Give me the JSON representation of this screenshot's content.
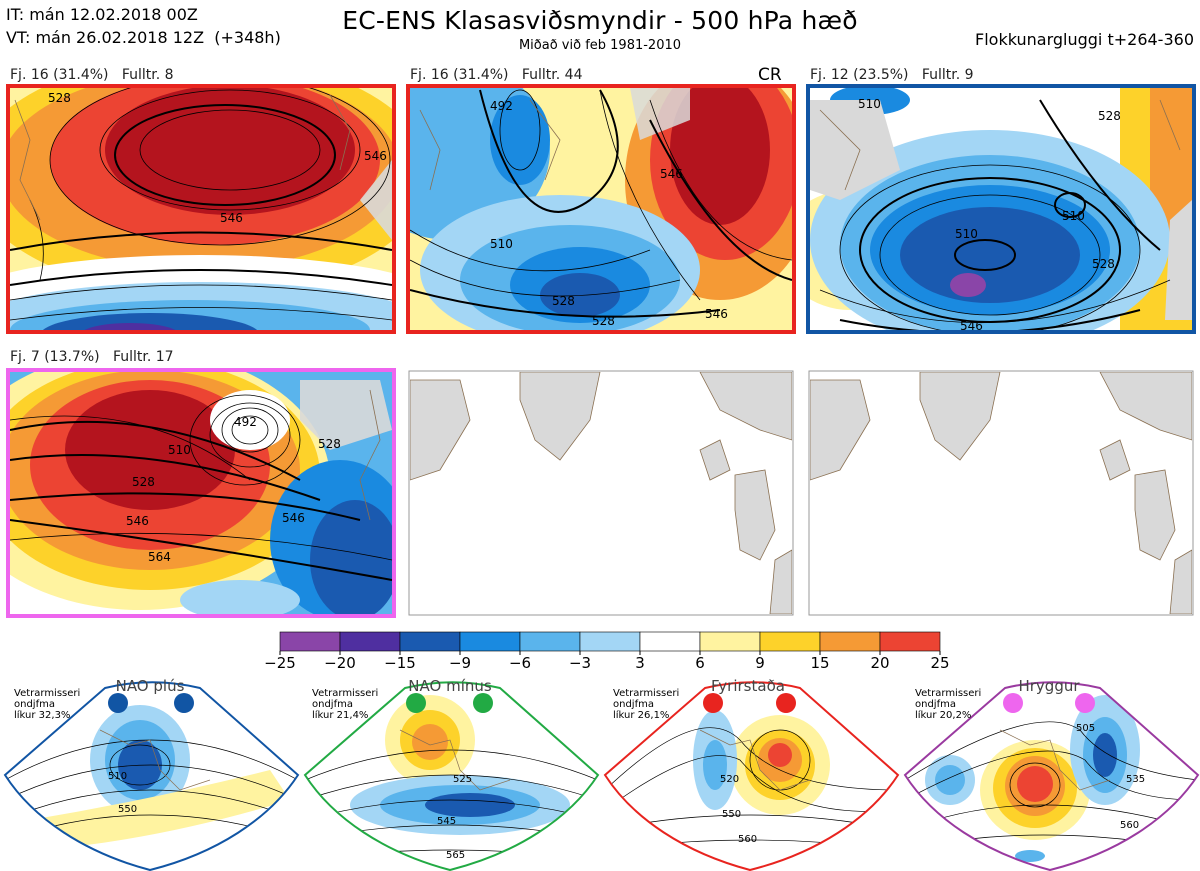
{
  "header": {
    "init_time": "IT: mán 12.02.2018 00Z",
    "valid_time": "VT: mán 26.02.2018 12Z  (+348h)",
    "title": "EC-ENS Klasasviðsmyndir - 500 hPa hæð",
    "subtitle": "Miðað við feb 1981-2010",
    "window": "Flokkunargluggi t+264-360"
  },
  "colors": {
    "cluster_red": "#e8241f",
    "cluster_blue": "#1155a4",
    "cluster_magenta": "#ee66ee",
    "land": "#d9d9d9",
    "coast": "#8a7052",
    "nao_plus": "#1155a4",
    "nao_minus": "#22aa44",
    "blocking": "#e8241f",
    "ridge": "#ee66ee"
  },
  "panels": [
    {
      "label": "Fj. 16 (31.4%)   Fulltr. 8",
      "border": "red",
      "contours": [
        "546",
        "546",
        "528"
      ]
    },
    {
      "label": "Fj. 16 (31.4%)   Fulltr. 44",
      "border": "red",
      "tag": "CR",
      "contours": [
        "492",
        "510",
        "528",
        "546",
        "546",
        "528"
      ]
    },
    {
      "label": "Fj. 12 (23.5%)   Fulltr. 9",
      "border": "blue",
      "contours": [
        "510",
        "510",
        "510",
        "528",
        "546",
        "528"
      ]
    },
    {
      "label": "Fj. 7 (13.7%)   Fulltr. 17",
      "border": "magenta",
      "contours": [
        "492",
        "510",
        "528",
        "546",
        "564",
        "546",
        "528"
      ]
    },
    {
      "label": "",
      "border": "none",
      "contours": []
    },
    {
      "label": "",
      "border": "none",
      "contours": []
    }
  ],
  "regimes": [
    {
      "name": "NAO plús",
      "stats": "Vetrarmisseri\nondjfma\nlíkur 32,3%",
      "contours": [
        "510",
        "550"
      ]
    },
    {
      "name": "NAO mínus",
      "stats": "Vetrarmisseri\nondjfma\nlíkur 21,4%",
      "contours": [
        "525",
        "545",
        "565"
      ]
    },
    {
      "name": "Fyrirstaða",
      "stats": "Vetrarmisseri\nondjfma\nlíkur 26,1%",
      "contours": [
        "520",
        "550",
        "560"
      ]
    },
    {
      "name": "Hryggur",
      "stats": "Vetrarmisseri\nondjfma\nlíkur 20,2%",
      "contours": [
        "505",
        "535",
        "560"
      ]
    }
  ],
  "chart_data": {
    "type": "heatmap",
    "title": "EC-ENS Klasasviðsmyndir - 500 hPa hæð",
    "colorbar": {
      "ticks": [
        -25,
        -20,
        -15,
        -9,
        -6,
        -3,
        3,
        6,
        9,
        15,
        20,
        25
      ],
      "tick_labels": [
        "−25",
        "−20",
        "−15",
        "−9",
        "−6",
        "−3",
        "3",
        "6",
        "9",
        "15",
        "20",
        "25"
      ],
      "colors": [
        "#8a45a8",
        "#4f2fa0",
        "#1a5ab0",
        "#1a8ae0",
        "#5ab4ec",
        "#a3d6f5",
        "#ffffff",
        "#fff3a0",
        "#fdd22a",
        "#f59a35",
        "#ec4433",
        "#b4141e"
      ]
    }
  }
}
